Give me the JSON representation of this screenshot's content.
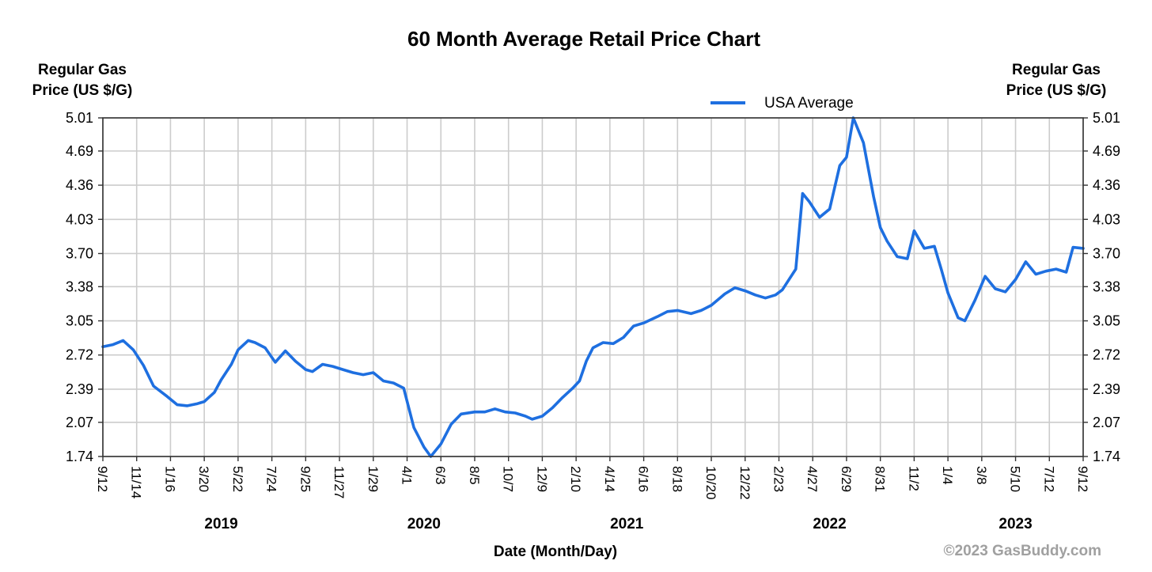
{
  "chart_data": {
    "type": "line",
    "title": "60 Month Average Retail Price Chart",
    "ylabel_left": [
      "Regular Gas",
      "Price (US $/G)"
    ],
    "ylabel_right": [
      "Regular Gas",
      "Price (US $/G)"
    ],
    "xlabel": "Date (Month/Day)",
    "ylim": [
      1.74,
      5.01
    ],
    "y_ticks": [
      "1.74",
      "2.07",
      "2.39",
      "2.72",
      "3.05",
      "3.38",
      "3.70",
      "4.03",
      "4.36",
      "4.69",
      "5.01"
    ],
    "x_ticks": [
      "9/12",
      "11/14",
      "1/16",
      "3/20",
      "5/22",
      "7/24",
      "9/25",
      "11/27",
      "1/29",
      "4/1",
      "6/3",
      "8/5",
      "10/7",
      "12/9",
      "2/10",
      "4/14",
      "6/16",
      "8/18",
      "10/20",
      "12/22",
      "2/23",
      "4/27",
      "6/29",
      "8/31",
      "11/2",
      "1/4",
      "3/8",
      "5/10",
      "7/12",
      "9/12"
    ],
    "year_labels": [
      "2019",
      "2020",
      "2021",
      "2022",
      "2023"
    ],
    "year_tick_index": [
      3.5,
      9.5,
      15.5,
      21.5,
      27
    ],
    "legend": "USA Average",
    "series_color": "#1e6fe0",
    "series": [
      {
        "name": "USA Average",
        "x_index": [
          0,
          0.3,
          0.6,
          0.9,
          1.2,
          1.5,
          1.9,
          2.2,
          2.5,
          2.8,
          3.0,
          3.3,
          3.5,
          3.8,
          4.0,
          4.3,
          4.5,
          4.8,
          5.1,
          5.4,
          5.7,
          6.0,
          6.2,
          6.5,
          6.8,
          7.1,
          7.4,
          7.7,
          8.0,
          8.3,
          8.6,
          8.9,
          9.2,
          9.5,
          9.7,
          10.0,
          10.3,
          10.6,
          11.0,
          11.3,
          11.6,
          11.9,
          12.2,
          12.5,
          12.7,
          13.0,
          13.3,
          13.6,
          13.9,
          14.1,
          14.3,
          14.5,
          14.8,
          15.1,
          15.4,
          15.7,
          16.0,
          16.4,
          16.7,
          17.0,
          17.4,
          17.7,
          18.0,
          18.4,
          18.7,
          19.0,
          19.3,
          19.6,
          19.9,
          20.1,
          20.3,
          20.5,
          20.7,
          20.9,
          21.2,
          21.5,
          21.8,
          22.0,
          22.2,
          22.5,
          22.8,
          23.0,
          23.2,
          23.5,
          23.8,
          24.0,
          24.3,
          24.6,
          24.8,
          25.0,
          25.3,
          25.5,
          25.8,
          26.1,
          26.4,
          26.7,
          27.0,
          27.3,
          27.6,
          27.9,
          28.2,
          28.5,
          28.7,
          29.0
        ],
        "values": [
          2.8,
          2.82,
          2.86,
          2.77,
          2.62,
          2.42,
          2.32,
          2.24,
          2.23,
          2.25,
          2.27,
          2.36,
          2.48,
          2.63,
          2.77,
          2.86,
          2.84,
          2.79,
          2.65,
          2.76,
          2.66,
          2.58,
          2.56,
          2.63,
          2.61,
          2.58,
          2.55,
          2.53,
          2.55,
          2.47,
          2.45,
          2.4,
          2.02,
          1.83,
          1.74,
          1.86,
          2.05,
          2.15,
          2.17,
          2.17,
          2.2,
          2.17,
          2.16,
          2.13,
          2.1,
          2.13,
          2.21,
          2.31,
          2.4,
          2.47,
          2.66,
          2.79,
          2.84,
          2.83,
          2.89,
          3.0,
          3.03,
          3.09,
          3.14,
          3.15,
          3.12,
          3.15,
          3.2,
          3.31,
          3.37,
          3.34,
          3.3,
          3.27,
          3.3,
          3.35,
          3.45,
          3.55,
          4.28,
          4.2,
          4.05,
          4.13,
          4.55,
          4.63,
          5.01,
          4.77,
          4.25,
          3.95,
          3.82,
          3.67,
          3.65,
          3.92,
          3.75,
          3.77,
          3.55,
          3.32,
          3.08,
          3.05,
          3.25,
          3.48,
          3.36,
          3.33,
          3.45,
          3.62,
          3.5,
          3.53,
          3.55,
          3.52,
          3.76,
          3.75
        ]
      }
    ]
  },
  "credit": "©2023 GasBuddy.com"
}
